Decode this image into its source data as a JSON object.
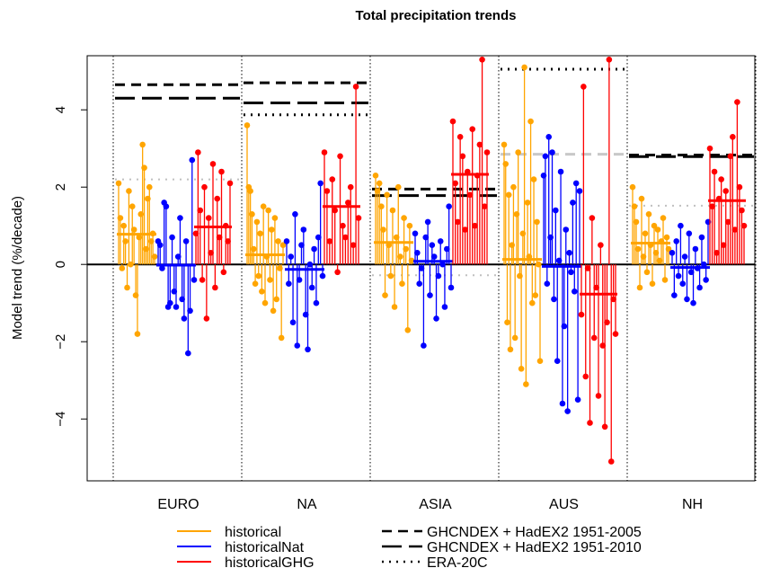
{
  "chart_data": {
    "type": "scatter",
    "title": "Total precipitation trends",
    "ylabel": "Model trend (%/decade)",
    "ylim": [
      -5.6,
      5.4
    ],
    "yticks": [
      -4,
      -2,
      0,
      2,
      4
    ],
    "ytick_labels": [
      "−4",
      "−2",
      "0",
      "2",
      "4"
    ],
    "regions": [
      "EURO",
      "NA",
      "ASIA",
      "AUS",
      "NH"
    ],
    "grid": false,
    "series_colors": {
      "historical": "#FFA500",
      "historicalNat": "#0000FF",
      "historicalGHG": "#FF0000"
    },
    "model_means": {
      "historical": [
        0.78,
        0.25,
        0.57,
        0.13,
        0.55
      ],
      "historicalNat": [
        -0.02,
        -0.13,
        0.08,
        -0.05,
        -0.08
      ],
      "historicalGHG": [
        0.97,
        1.5,
        2.33,
        -0.77,
        1.65
      ]
    },
    "model_trends": {
      "historical": [
        [
          2.1,
          1.2,
          -0.1,
          1.0,
          0.6,
          -0.6,
          1.9,
          0.0,
          1.5,
          0.9,
          -0.8,
          -1.8,
          0.7,
          1.3,
          3.1,
          2.5,
          0.4,
          1.7,
          2.0,
          0.6,
          0.8,
          0.2
        ],
        [
          3.6,
          2.0,
          1.9,
          1.3,
          0.4,
          -0.5,
          1.1,
          -0.3,
          0.8,
          -0.7,
          1.5,
          -1.0,
          0.2,
          1.4,
          -0.4,
          0.9,
          -1.2,
          1.2,
          -0.9,
          0.6,
          -0.1,
          -1.9,
          0.5
        ],
        [
          2.3,
          1.9,
          2.1,
          1.5,
          0.9,
          -0.8,
          1.8,
          0.5,
          -0.3,
          1.4,
          -1.1,
          0.7,
          2.0,
          0.2,
          -0.5,
          1.2,
          0.4,
          -1.7,
          1.0,
          0.1
        ],
        [
          3.1,
          2.6,
          -1.5,
          1.8,
          -2.2,
          0.5,
          2.0,
          -1.9,
          1.3,
          2.9,
          -0.3,
          -2.7,
          0.8,
          5.1,
          -3.1,
          1.6,
          0.2,
          3.7,
          -1.0,
          2.2,
          -0.8,
          1.1,
          0.0,
          -2.5
        ],
        [
          2.0,
          1.5,
          1.1,
          0.4,
          -0.6,
          1.7,
          0.2,
          0.8,
          -0.2,
          1.3,
          0.5,
          -0.5,
          1.0,
          0.3,
          0.9,
          0.1,
          0.6,
          1.2,
          -0.4,
          0.7,
          0.4
        ]
      ],
      "historicalNat": [
        [
          0.6,
          0.5,
          -0.1,
          1.6,
          1.5,
          -1.1,
          -1.0,
          0.7,
          -0.7,
          -1.1,
          0.2,
          1.2,
          -0.9,
          -1.4,
          0.6,
          -2.3,
          -1.2,
          2.7,
          -0.4
        ],
        [
          0.6,
          -0.5,
          0.2,
          -1.5,
          1.3,
          -2.1,
          -0.4,
          0.5,
          0.9,
          -1.3,
          -2.2,
          0.0,
          -0.6,
          0.4,
          -1.0,
          0.7,
          2.1,
          -0.3
        ],
        [
          0.8,
          0.3,
          -0.5,
          -0.1,
          -2.1,
          0.7,
          1.1,
          -0.8,
          0.5,
          0.2,
          -1.4,
          -0.3,
          0.6,
          0.0,
          -1.1,
          0.4,
          1.5,
          -0.6
        ],
        [
          2.3,
          2.8,
          -0.5,
          3.3,
          0.7,
          2.9,
          -0.9,
          1.4,
          -2.5,
          0.1,
          2.4,
          -3.6,
          -1.6,
          0.9,
          -3.8,
          0.3,
          -0.2,
          1.6,
          -0.7,
          2.1,
          -3.5,
          1.9
        ],
        [
          0.3,
          -0.8,
          0.6,
          -0.3,
          1.0,
          -0.5,
          0.2,
          -0.9,
          0.8,
          -0.2,
          -1.0,
          0.4,
          -0.1,
          -0.6,
          0.7,
          0.0,
          -0.4,
          1.1
        ]
      ],
      "historicalGHG": [
        [
          0.8,
          2.9,
          1.4,
          -0.4,
          2.0,
          -1.4,
          1.2,
          0.3,
          2.6,
          -0.6,
          1.7,
          0.7,
          2.4,
          -0.2,
          1.0,
          0.6,
          2.1
        ],
        [
          2.9,
          1.9,
          0.6,
          2.2,
          1.4,
          -0.2,
          2.8,
          1.0,
          0.7,
          1.6,
          2.0,
          0.5,
          4.6,
          1.2
        ],
        [
          3.7,
          2.1,
          1.1,
          3.3,
          2.8,
          0.9,
          2.4,
          1.8,
          3.5,
          1.0,
          2.3,
          3.1,
          5.3,
          1.5,
          2.9
        ],
        [
          -1.3,
          4.6,
          -2.9,
          -0.1,
          -4.1,
          1.2,
          -1.9,
          -0.6,
          -3.4,
          0.5,
          -2.1,
          -4.2,
          -1.5,
          5.3,
          -5.1,
          -0.9,
          -1.8
        ],
        [
          3.0,
          1.5,
          2.4,
          0.3,
          1.7,
          2.2,
          0.5,
          1.9,
          1.1,
          2.8,
          3.3,
          0.9,
          4.2,
          2.0,
          1.4,
          1.0
        ]
      ]
    },
    "observations": {
      "GHCNDEX + HadEX2 1951-2005": [
        4.65,
        4.7,
        1.95,
        null,
        2.83
      ],
      "GHCNDEX + HadEX2 1951-2010": [
        4.3,
        4.18,
        1.78,
        null,
        2.79
      ],
      "ERA-20C": [
        2.2,
        3.87,
        -0.28,
        5.05,
        1.52
      ],
      "obs_gray": [
        null,
        null,
        null,
        2.85,
        null
      ]
    },
    "legend": {
      "series": [
        "historical",
        "historicalNat",
        "historicalGHG"
      ],
      "obs": [
        "GHCNDEX + HadEX2 1951-2005",
        "GHCNDEX + HadEX2 1951-2010",
        "ERA-20C"
      ],
      "placement": "bottom"
    }
  }
}
